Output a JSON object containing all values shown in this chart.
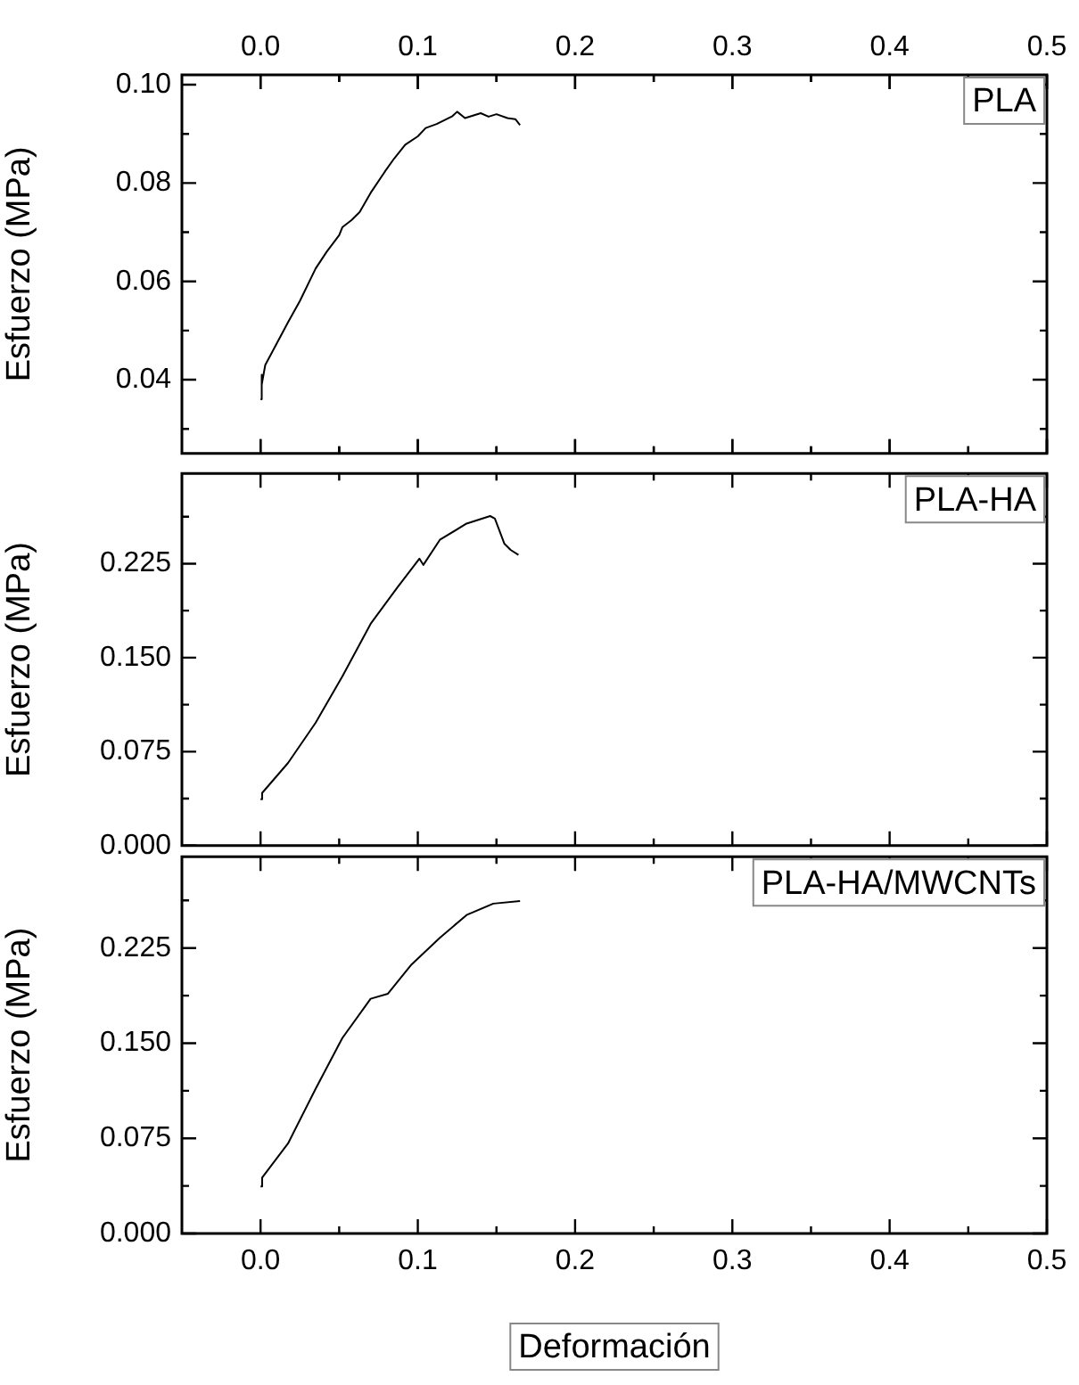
{
  "chart_data": [
    {
      "type": "line",
      "ylabel": "Esfuerzo (MPa)",
      "annotations": [
        "PLA"
      ],
      "tick_labels": "y",
      "xlim": [
        -0.05,
        0.5
      ],
      "xticks": [
        0,
        {
          "value": 0.05,
          "label": null
        },
        0.1,
        {
          "value": 0.15,
          "label": null
        },
        0.2,
        {
          "value": 0.25,
          "label": null
        },
        0.3,
        {
          "value": 0.35,
          "label": null
        },
        0.4,
        {
          "value": 0.45,
          "label": null
        },
        0.5
      ],
      "x2lim": [
        -0.05,
        0.5
      ],
      "x2ticks": [
        {
          "value": 0,
          "label": "0.0"
        },
        {
          "value": 0.05,
          "label": null
        },
        {
          "value": 0.1,
          "label": "0.1"
        },
        {
          "value": 0.15,
          "label": null
        },
        {
          "value": 0.2,
          "label": "0.2"
        },
        {
          "value": 0.25,
          "label": null
        },
        {
          "value": 0.3,
          "label": "0.3"
        },
        {
          "value": 0.35,
          "label": null
        },
        {
          "value": 0.4,
          "label": "0.4"
        },
        {
          "value": 0.45,
          "label": null
        },
        {
          "value": 0.5,
          "label": "0.5"
        }
      ],
      "ylim": [
        0.025,
        0.102
      ],
      "yticks": [
        {
          "value": 0.03,
          "label": null
        },
        0.04,
        {
          "value": 0.05,
          "label": null
        },
        0.06,
        {
          "value": 0.07,
          "label": null
        },
        0.08,
        {
          "value": 0.09,
          "label": null
        },
        {
          "value": 0.1,
          "label": "0.10"
        }
      ],
      "series": [
        {
          "color": "#000000",
          "x": [
            0,
            0.0005,
            0.001,
            0.003,
            0.008,
            0.0175,
            0.025,
            0.035,
            0.042,
            0.05,
            0.052,
            0.058,
            0.063,
            0.07,
            0.079,
            0.085,
            0.092,
            0.1,
            0.105,
            0.112,
            0.122,
            0.125,
            0.13,
            0.14,
            0.145,
            0.15,
            0.157,
            0.162,
            0.165
          ],
          "values": [
            0.036,
            0.041,
            0.039,
            0.043,
            0.046,
            0.0517,
            0.056,
            0.0626,
            0.066,
            0.0694,
            0.071,
            0.0725,
            0.0741,
            0.078,
            0.0823,
            0.085,
            0.0878,
            0.0895,
            0.0912,
            0.092,
            0.0936,
            0.0945,
            0.0932,
            0.0942,
            0.0935,
            0.094,
            0.0932,
            0.093,
            0.0918
          ]
        }
      ]
    },
    {
      "type": "line",
      "ylabel": "Esfuerzo (MPa)",
      "annotations": [
        "PLA-HA"
      ],
      "tick_labels": "y",
      "xlim": [
        -0.05,
        0.5
      ],
      "xticks": [
        0,
        {
          "value": 0.05,
          "label": null
        },
        0.1,
        {
          "value": 0.15,
          "label": null
        },
        0.2,
        {
          "value": 0.25,
          "label": null
        },
        0.3,
        {
          "value": 0.35,
          "label": null
        },
        0.4,
        {
          "value": 0.45,
          "label": null
        },
        0.5
      ],
      "ylim": [
        0,
        0.297
      ],
      "yticks": [
        {
          "value": 0,
          "label": "0.000"
        },
        {
          "value": 0.0375,
          "label": null
        },
        {
          "value": 0.075,
          "label": "0.075"
        },
        {
          "value": 0.1125,
          "label": null
        },
        {
          "value": 0.15,
          "label": "0.150"
        },
        {
          "value": 0.1875,
          "label": null
        },
        {
          "value": 0.225,
          "label": "0.225"
        },
        {
          "value": 0.2625,
          "label": null
        }
      ],
      "series": [
        {
          "color": "#000000",
          "x": [
            0,
            0.001,
            0.0175,
            0.035,
            0.052,
            0.07,
            0.087,
            0.101,
            0.1035,
            0.114,
            0.131,
            0.146,
            0.149,
            0.155,
            0.159,
            0.164
          ],
          "values": [
            0.037,
            0.042,
            0.066,
            0.098,
            0.135,
            0.177,
            0.206,
            0.229,
            0.224,
            0.244,
            0.257,
            0.263,
            0.261,
            0.241,
            0.236,
            0.232
          ]
        }
      ]
    },
    {
      "type": "line",
      "ylabel": "Esfuerzo (MPa)",
      "xlabel": "Deformación",
      "annotations": [
        "PLA-HA/MWCNTs"
      ],
      "xlim": [
        -0.05,
        0.5
      ],
      "xticks": [
        {
          "value": 0,
          "label": "0.0"
        },
        {
          "value": 0.05,
          "label": null
        },
        {
          "value": 0.1,
          "label": "0.1"
        },
        {
          "value": 0.15,
          "label": null
        },
        {
          "value": 0.2,
          "label": "0.2"
        },
        {
          "value": 0.25,
          "label": null
        },
        {
          "value": 0.3,
          "label": "0.3"
        },
        {
          "value": 0.35,
          "label": null
        },
        {
          "value": 0.4,
          "label": "0.4"
        },
        {
          "value": 0.45,
          "label": null
        },
        {
          "value": 0.5,
          "label": "0.5"
        }
      ],
      "ylim": [
        0,
        0.297
      ],
      "yticks": [
        {
          "value": 0,
          "label": "0.000"
        },
        {
          "value": 0.0375,
          "label": null
        },
        {
          "value": 0.075,
          "label": "0.075"
        },
        {
          "value": 0.1125,
          "label": null
        },
        {
          "value": 0.15,
          "label": "0.150"
        },
        {
          "value": 0.1875,
          "label": null
        },
        {
          "value": 0.225,
          "label": "0.225"
        },
        {
          "value": 0.2625,
          "label": null
        }
      ],
      "series": [
        {
          "color": "#000000",
          "x": [
            0,
            0.001,
            0.0175,
            0.035,
            0.052,
            0.07,
            0.081,
            0.096,
            0.114,
            0.131,
            0.148,
            0.165
          ],
          "values": [
            0.037,
            0.044,
            0.071,
            0.114,
            0.154,
            0.185,
            0.189,
            0.212,
            0.233,
            0.251,
            0.26,
            0.262
          ]
        }
      ]
    }
  ]
}
